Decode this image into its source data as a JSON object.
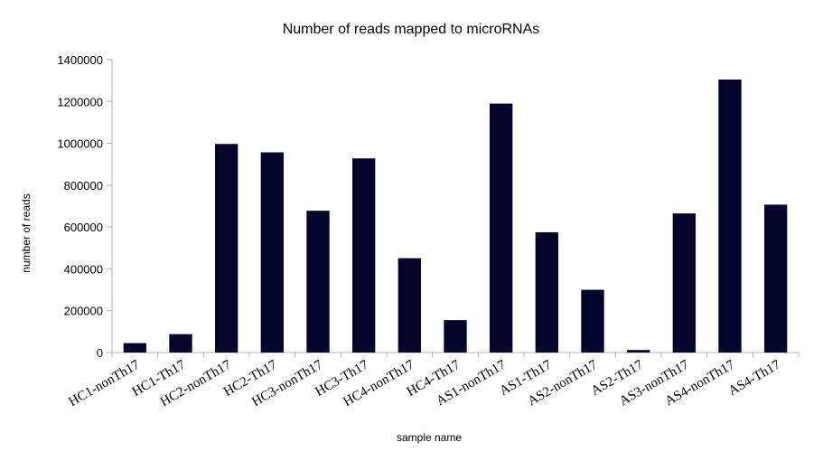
{
  "chart_data": {
    "type": "bar",
    "title": "Number of reads mapped to microRNAs",
    "xlabel": "sample name",
    "ylabel": "number of reads",
    "ylim": [
      0,
      1400000
    ],
    "yticks": [
      0,
      200000,
      400000,
      600000,
      800000,
      1000000,
      1200000,
      1400000
    ],
    "ytick_labels": [
      "0",
      "200000",
      "400000",
      "600000",
      "800000",
      "1000000",
      "1200000",
      "1400000"
    ],
    "categories": [
      "HC1-nonTh17",
      "HC1-Th17",
      "HC2-nonTh17",
      "HC2-Th17",
      "HC3-nonTh17",
      "HC3-Th17",
      "HC4-nonTh17",
      "HC4-Th17",
      "AS1-nonTh17",
      "AS1-Th17",
      "AS2-nonTh17",
      "AS2-Th17",
      "AS3-nonTh17",
      "AS4-nonTh17",
      "AS4-Th17"
    ],
    "values": [
      45000,
      88000,
      997000,
      957000,
      678000,
      928000,
      451000,
      155000,
      1190000,
      575000,
      300000,
      12000,
      665000,
      1305000,
      707000
    ],
    "bar_color": "#05052b",
    "grid": false,
    "legend": "none"
  }
}
